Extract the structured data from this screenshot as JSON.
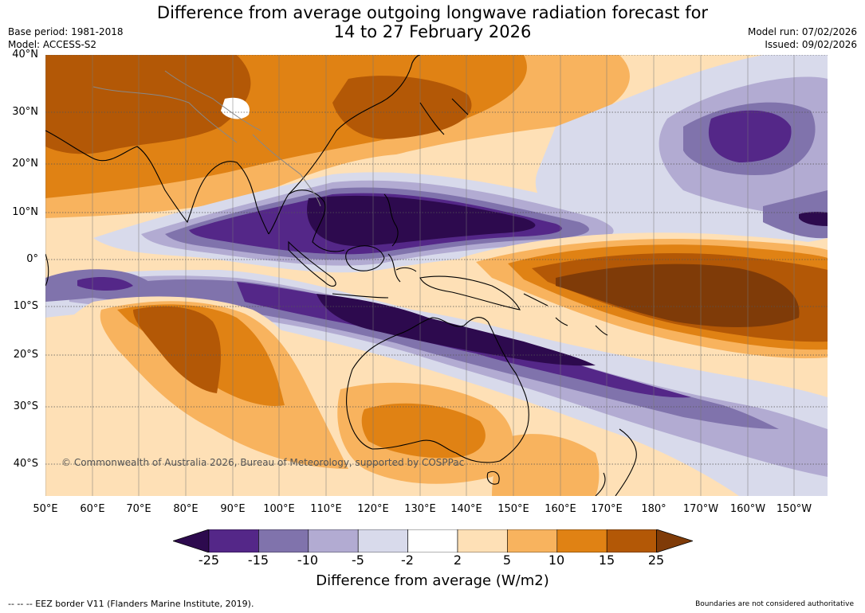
{
  "header": {
    "title_line1": "Difference from average outgoing longwave radiation forecast for",
    "title_line2": "14 to 27 February 2026",
    "base_period": "Base period: 1981-2018",
    "model": "Model: ACCESS-S2",
    "model_run": "Model run: 07/02/2026",
    "issued": "Issued: 09/02/2026"
  },
  "map": {
    "lat_labels": [
      "40°N",
      "30°N",
      "20°N",
      "10°N",
      "0°",
      "10°S",
      "20°S",
      "30°S",
      "40°S"
    ],
    "lon_labels": [
      "50°E",
      "60°E",
      "70°E",
      "80°E",
      "90°E",
      "100°E",
      "110°E",
      "120°E",
      "130°E",
      "140°E",
      "150°E",
      "160°E",
      "170°E",
      "180°",
      "170°W",
      "160°W",
      "150°W"
    ],
    "copyright": "© Commonwealth of Australia 2026, Bureau of Meteorology, supported by COSPPac"
  },
  "colorbar": {
    "ticks": [
      "-25",
      "-15",
      "-10",
      "-5",
      "-2",
      "2",
      "5",
      "10",
      "15",
      "25"
    ],
    "colors": [
      "#2d0a4e",
      "#542788",
      "#8073ac",
      "#b2abd2",
      "#d8daeb",
      "#ffffff",
      "#fee0b6",
      "#f8b35e",
      "#e08214",
      "#b35806",
      "#7f3b08"
    ],
    "title": "Difference from average (W/m2)"
  },
  "footer": {
    "eez_note": "--  --  -- EEZ border V11 (Flanders Marine Institute, 2019).",
    "disclaimer": "Boundaries are not considered authoritative"
  }
}
